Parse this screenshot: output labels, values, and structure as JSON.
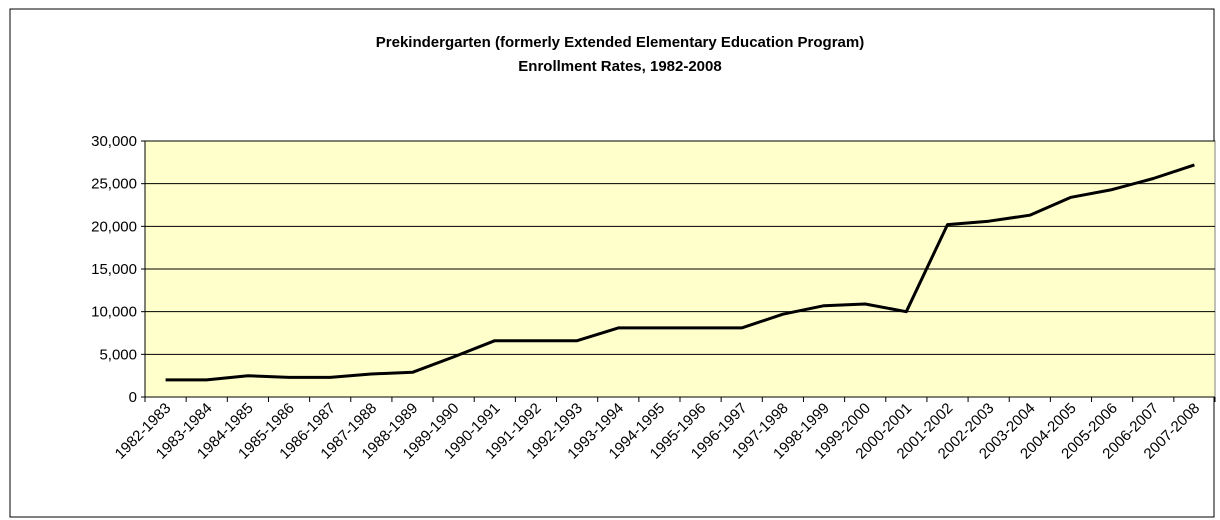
{
  "chart_data": {
    "type": "line",
    "title": [
      "Prekindergarten (formerly Extended Elementary Education Program)",
      "Enrollment Rates, 1982-2008"
    ],
    "categories": [
      "1982-1983",
      "1983-1984",
      "1984-1985",
      "1985-1986",
      "1986-1987",
      "1987-1988",
      "1988-1989",
      "1989-1990",
      "1990-1991",
      "1991-1992",
      "1992-1993",
      "1993-1994",
      "1994-1995",
      "1995-1996",
      "1996-1997",
      "1997-1998",
      "1998-1999",
      "1999-2000",
      "2000-2001",
      "2001-2002",
      "2002-2003",
      "2003-2004",
      "2004-2005",
      "2005-2006",
      "2006-2007",
      "2007-2008"
    ],
    "values": [
      2000,
      2000,
      2500,
      2300,
      2300,
      2700,
      2900,
      4700,
      6600,
      6600,
      6600,
      8100,
      8100,
      8100,
      8100,
      9700,
      10700,
      10900,
      10000,
      20200,
      20600,
      21300,
      23400,
      24300,
      25600,
      27200
    ],
    "color": "#000000",
    "ylim": [
      0,
      30000
    ],
    "yticks": [
      0,
      {
        "value": 5000,
        "label": "5,000"
      },
      {
        "value": 10000,
        "label": "10,000"
      },
      {
        "value": 15000,
        "label": "15,000"
      },
      {
        "value": 20000,
        "label": "20,000"
      },
      {
        "value": 25000,
        "label": "25,000"
      },
      {
        "value": 30000,
        "label": "30,000"
      }
    ],
    "grid": true
  }
}
